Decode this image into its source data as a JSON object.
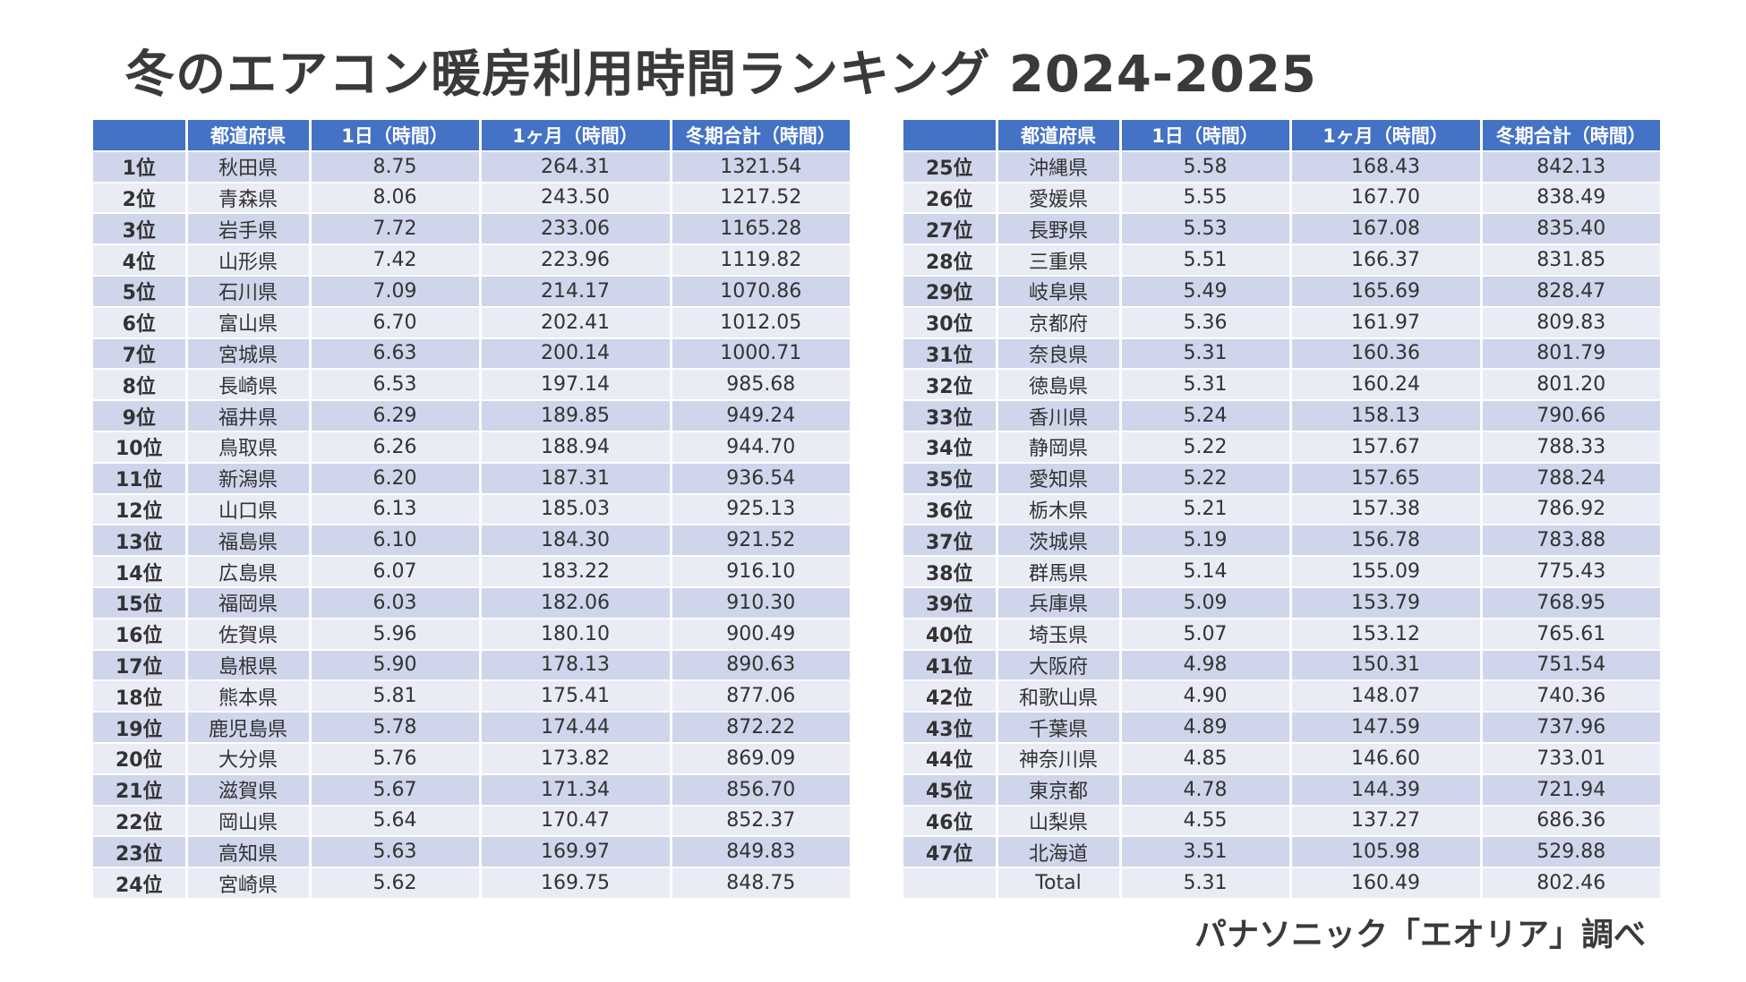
{
  "title": "冬のエアコン暖房利用時間ランキング  2024-2025",
  "headers": [
    "",
    "都道府県",
    "1日（時間）",
    "1ヶ月（時間）",
    "冬期合計（時間）"
  ],
  "left_rows": [
    [
      "1位",
      "秋田県",
      "8.75",
      "264.31",
      "1321.54"
    ],
    [
      "2位",
      "青森県",
      "8.06",
      "243.50",
      "1217.52"
    ],
    [
      "3位",
      "岩手県",
      "7.72",
      "233.06",
      "1165.28"
    ],
    [
      "4位",
      "山形県",
      "7.42",
      "223.96",
      "1119.82"
    ],
    [
      "5位",
      "石川県",
      "7.09",
      "214.17",
      "1070.86"
    ],
    [
      "6位",
      "富山県",
      "6.70",
      "202.41",
      "1012.05"
    ],
    [
      "7位",
      "宮城県",
      "6.63",
      "200.14",
      "1000.71"
    ],
    [
      "8位",
      "長崎県",
      "6.53",
      "197.14",
      "985.68"
    ],
    [
      "9位",
      "福井県",
      "6.29",
      "189.85",
      "949.24"
    ],
    [
      "10位",
      "鳥取県",
      "6.26",
      "188.94",
      "944.70"
    ],
    [
      "11位",
      "新潟県",
      "6.20",
      "187.31",
      "936.54"
    ],
    [
      "12位",
      "山口県",
      "6.13",
      "185.03",
      "925.13"
    ],
    [
      "13位",
      "福島県",
      "6.10",
      "184.30",
      "921.52"
    ],
    [
      "14位",
      "広島県",
      "6.07",
      "183.22",
      "916.10"
    ],
    [
      "15位",
      "福岡県",
      "6.03",
      "182.06",
      "910.30"
    ],
    [
      "16位",
      "佐賀県",
      "5.96",
      "180.10",
      "900.49"
    ],
    [
      "17位",
      "島根県",
      "5.90",
      "178.13",
      "890.63"
    ],
    [
      "18位",
      "熊本県",
      "5.81",
      "175.41",
      "877.06"
    ],
    [
      "19位",
      "鹿児島県",
      "5.78",
      "174.44",
      "872.22"
    ],
    [
      "20位",
      "大分県",
      "5.76",
      "173.82",
      "869.09"
    ],
    [
      "21位",
      "滋賀県",
      "5.67",
      "171.34",
      "856.70"
    ],
    [
      "22位",
      "岡山県",
      "5.64",
      "170.47",
      "852.37"
    ],
    [
      "23位",
      "高知県",
      "5.63",
      "169.97",
      "849.83"
    ],
    [
      "24位",
      "宮崎県",
      "5.62",
      "169.75",
      "848.75"
    ]
  ],
  "right_rows": [
    [
      "25位",
      "沖縄県",
      "5.58",
      "168.43",
      "842.13"
    ],
    [
      "26位",
      "愛媛県",
      "5.55",
      "167.70",
      "838.49"
    ],
    [
      "27位",
      "長野県",
      "5.53",
      "167.08",
      "835.40"
    ],
    [
      "28位",
      "三重県",
      "5.51",
      "166.37",
      "831.85"
    ],
    [
      "29位",
      "岐阜県",
      "5.49",
      "165.69",
      "828.47"
    ],
    [
      "30位",
      "京都府",
      "5.36",
      "161.97",
      "809.83"
    ],
    [
      "31位",
      "奈良県",
      "5.31",
      "160.36",
      "801.79"
    ],
    [
      "32位",
      "徳島県",
      "5.31",
      "160.24",
      "801.20"
    ],
    [
      "33位",
      "香川県",
      "5.24",
      "158.13",
      "790.66"
    ],
    [
      "34位",
      "静岡県",
      "5.22",
      "157.67",
      "788.33"
    ],
    [
      "35位",
      "愛知県",
      "5.22",
      "157.65",
      "788.24"
    ],
    [
      "36位",
      "栃木県",
      "5.21",
      "157.38",
      "786.92"
    ],
    [
      "37位",
      "茨城県",
      "5.19",
      "156.78",
      "783.88"
    ],
    [
      "38位",
      "群馬県",
      "5.14",
      "155.09",
      "775.43"
    ],
    [
      "39位",
      "兵庫県",
      "5.09",
      "153.79",
      "768.95"
    ],
    [
      "40位",
      "埼玉県",
      "5.07",
      "153.12",
      "765.61"
    ],
    [
      "41位",
      "大阪府",
      "4.98",
      "150.31",
      "751.54"
    ],
    [
      "42位",
      "和歌山県",
      "4.90",
      "148.07",
      "740.36"
    ],
    [
      "43位",
      "千葉県",
      "4.89",
      "147.59",
      "737.96"
    ],
    [
      "44位",
      "神奈川県",
      "4.85",
      "146.60",
      "733.01"
    ],
    [
      "45位",
      "東京都",
      "4.78",
      "144.39",
      "721.94"
    ],
    [
      "46位",
      "山梨県",
      "4.55",
      "137.27",
      "686.36"
    ],
    [
      "47位",
      "北海道",
      "3.51",
      "105.98",
      "529.88"
    ],
    [
      "",
      "Total",
      "5.31",
      "160.49",
      "802.46"
    ]
  ],
  "source": "パナソニック「エオリア」調べ",
  "colors": {
    "header_bg": "#4472c4",
    "row_odd": "#cfd5ea",
    "row_even": "#e9ebf5"
  }
}
